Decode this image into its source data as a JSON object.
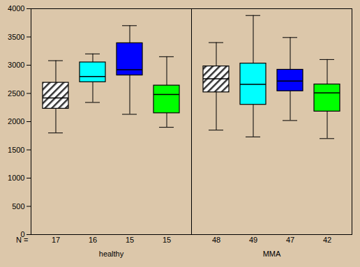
{
  "chart_data": {
    "type": "box",
    "categories": [
      "healthy",
      "MMA"
    ],
    "n_label": "N =",
    "ylim": [
      0,
      4000
    ],
    "yticks": [
      0,
      500,
      1000,
      1500,
      2000,
      2500,
      3000,
      3500,
      4000
    ],
    "series": [
      {
        "color": "#ffffff",
        "line_style": "hatched",
        "min": [
          1800,
          1850
        ],
        "q1": [
          2230,
          2520
        ],
        "median": [
          2420,
          2760
        ],
        "q3": [
          2690,
          2980
        ],
        "max": [
          3080,
          3400
        ],
        "n": [
          17,
          48
        ]
      },
      {
        "color": "#00ffff",
        "line_style": "solid",
        "min": [
          2340,
          1730
        ],
        "q1": [
          2700,
          2300
        ],
        "median": [
          2800,
          2660
        ],
        "q3": [
          3050,
          3030
        ],
        "max": [
          3200,
          3880
        ],
        "n": [
          16,
          49
        ]
      },
      {
        "color": "#0000ff",
        "line_style": "solid",
        "min": [
          2130,
          2020
        ],
        "q1": [
          2820,
          2540
        ],
        "median": [
          2920,
          2720
        ],
        "q3": [
          3390,
          2920
        ],
        "max": [
          3700,
          3490
        ],
        "n": [
          15,
          47
        ]
      },
      {
        "color": "#00ff00",
        "line_style": "solid",
        "min": [
          1900,
          1700
        ],
        "q1": [
          2150,
          2180
        ],
        "median": [
          2480,
          2510
        ],
        "q3": [
          2640,
          2660
        ],
        "max": [
          3150,
          3100
        ],
        "n": [
          15,
          42
        ]
      }
    ]
  }
}
